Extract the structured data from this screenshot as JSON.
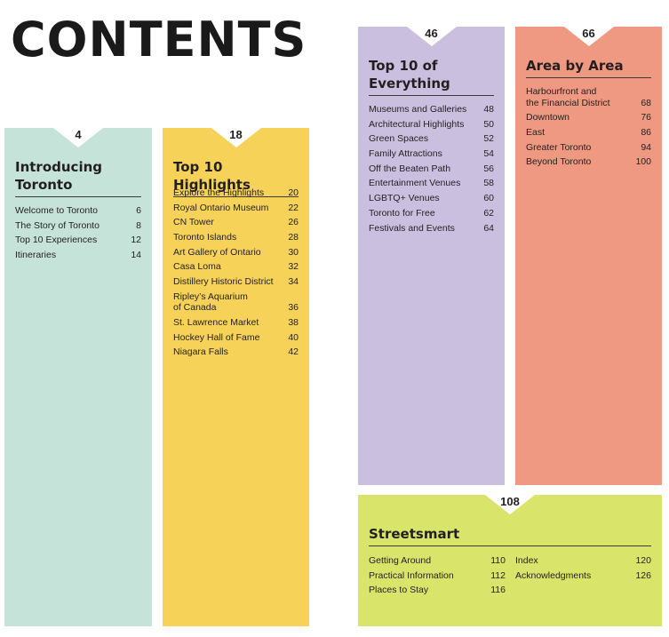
{
  "title": "CONTENTS",
  "sections": {
    "introducing": {
      "page": "4",
      "title": "Introducing\nToronto",
      "entries": [
        {
          "label": "Welcome to Toronto",
          "page": "6"
        },
        {
          "label": "The Story of Toronto",
          "page": "8"
        },
        {
          "label": "Top 10 Experiences",
          "page": "12"
        },
        {
          "label": "Itineraries",
          "page": "14"
        }
      ]
    },
    "highlights": {
      "page": "18",
      "title": "Top 10 Highlights",
      "entries": [
        {
          "label": "Explore the Highlights",
          "page": "20"
        },
        {
          "label": "Royal Ontario Museum",
          "page": "22"
        },
        {
          "label": "CN Tower",
          "page": "26"
        },
        {
          "label": "Toronto Islands",
          "page": "28"
        },
        {
          "label": "Art Gallery of Ontario",
          "page": "30"
        },
        {
          "label": "Casa Loma",
          "page": "32"
        },
        {
          "label": "Distillery Historic District",
          "page": "34"
        },
        {
          "label": "Ripley’s Aquarium\n   of Canada",
          "page": "36"
        },
        {
          "label": "St. Lawrence Market",
          "page": "38"
        },
        {
          "label": "Hockey Hall of Fame",
          "page": "40"
        },
        {
          "label": "Niagara Falls",
          "page": "42"
        }
      ]
    },
    "everything": {
      "page": "46",
      "title": "Top 10 of\nEverything",
      "entries": [
        {
          "label": "Museums and Galleries",
          "page": "48"
        },
        {
          "label": "Architectural Highlights",
          "page": "50"
        },
        {
          "label": "Green Spaces",
          "page": "52"
        },
        {
          "label": "Family Attractions",
          "page": "54"
        },
        {
          "label": "Off the Beaten Path",
          "page": "56"
        },
        {
          "label": "Entertainment Venues",
          "page": "58"
        },
        {
          "label": "LGBTQ+ Venues",
          "page": "60"
        },
        {
          "label": "Toronto for Free",
          "page": "62"
        },
        {
          "label": "Festivals and Events",
          "page": "64"
        }
      ]
    },
    "area": {
      "page": "66",
      "title": "Area by Area",
      "entries": [
        {
          "label": "Harbourfront and\n   the Financial District",
          "page": "68"
        },
        {
          "label": "Downtown",
          "page": "76"
        },
        {
          "label": "East",
          "page": "86"
        },
        {
          "label": "Greater Toronto",
          "page": "94"
        },
        {
          "label": "Beyond Toronto",
          "page": "100"
        }
      ]
    },
    "streetsmart": {
      "page": "108",
      "title": "Streetsmart",
      "left_entries": [
        {
          "label": "Getting Around",
          "page": "110"
        },
        {
          "label": "Practical Information",
          "page": "112"
        },
        {
          "label": "Places to Stay",
          "page": "116"
        }
      ],
      "right_entries": [
        {
          "label": "Index",
          "page": "120"
        },
        {
          "label": "Acknowledgments",
          "page": "126"
        }
      ]
    }
  }
}
